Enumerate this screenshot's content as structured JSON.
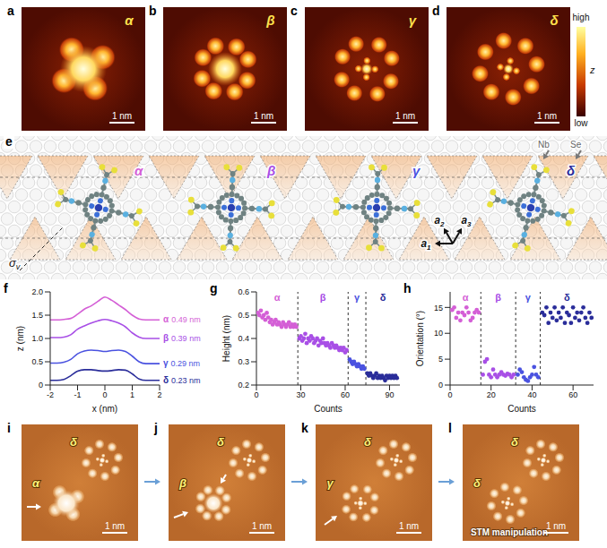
{
  "stm_images": [
    {
      "letter": "a",
      "state": "α",
      "scale_bar": "1 nm"
    },
    {
      "letter": "b",
      "state": "β",
      "scale_bar": "1 nm"
    },
    {
      "letter": "c",
      "state": "γ",
      "scale_bar": "1 nm"
    },
    {
      "letter": "d",
      "state": "δ",
      "scale_bar": "1 nm"
    }
  ],
  "colorbar": {
    "title": "z",
    "top": "high",
    "bottom": "low"
  },
  "schematic": {
    "letter": "e",
    "molecules": [
      "α",
      "β",
      "γ",
      "δ"
    ],
    "atoms": [
      "Nb",
      "Se"
    ],
    "mirror": {
      "base": "σ",
      "sub": "v"
    },
    "vectors": [
      {
        "base": "a",
        "sub": "1"
      },
      {
        "base": "a",
        "sub": "2"
      },
      {
        "base": "a",
        "sub": "3"
      }
    ]
  },
  "chart_data": [
    {
      "letter": "f",
      "type": "line",
      "xlabel": "x (nm)",
      "ylabel": "z (nm)",
      "xlim": [
        -2,
        2
      ],
      "xticks": [
        -2,
        -1,
        0,
        1,
        2
      ],
      "ylim": [
        0,
        2
      ],
      "yticks": [
        0,
        0.5,
        {
          "value": 1,
          "label": "1.0"
        },
        1.5,
        {
          "value": 2,
          "label": "2.0"
        }
      ],
      "x": [
        -2,
        -1.75,
        -1.5,
        -1.25,
        -1,
        -0.75,
        -0.5,
        -0.25,
        0,
        0.25,
        0.5,
        0.75,
        1,
        1.25,
        1.5,
        1.75,
        2
      ],
      "series": [
        {
          "name": "α",
          "color": "#d45fd6",
          "annotation": "0.49 nm",
          "values": [
            1.4,
            1.4,
            1.41,
            1.43,
            1.52,
            1.63,
            1.7,
            1.8,
            1.89,
            1.82,
            1.72,
            1.62,
            1.5,
            1.42,
            1.4,
            1.4,
            1.4
          ]
        },
        {
          "name": "β",
          "color": "#a84fe6",
          "annotation": "0.39 nm",
          "values": [
            1.02,
            1.02,
            1.03,
            1.08,
            1.2,
            1.27,
            1.33,
            1.38,
            1.41,
            1.38,
            1.33,
            1.25,
            1.12,
            1.03,
            1.0,
            1.0,
            1.0
          ]
        },
        {
          "name": "γ",
          "color": "#4a52e0",
          "annotation": "0.29 nm",
          "values": [
            0.47,
            0.47,
            0.49,
            0.55,
            0.67,
            0.73,
            0.75,
            0.74,
            0.72,
            0.74,
            0.75,
            0.72,
            0.62,
            0.5,
            0.46,
            0.46,
            0.46
          ]
        },
        {
          "name": "δ",
          "color": "#2a2d9a",
          "annotation": "0.23 nm",
          "values": [
            0.1,
            0.1,
            0.12,
            0.2,
            0.3,
            0.33,
            0.33,
            0.31,
            0.3,
            0.31,
            0.33,
            0.32,
            0.24,
            0.13,
            0.1,
            0.1,
            0.1
          ]
        }
      ]
    },
    {
      "letter": "g",
      "type": "scatter",
      "xlabel": "Counts",
      "ylabel": "Height (nm)",
      "xlim": [
        0,
        97
      ],
      "xticks": [
        0,
        30,
        60,
        90
      ],
      "ylim": [
        0.2,
        0.6
      ],
      "yticks": [
        0.2,
        0.3,
        0.4,
        0.5,
        0.6
      ],
      "boundaries": [
        28,
        62,
        74
      ],
      "series": [
        {
          "name": "α",
          "color": "#d45fd6",
          "x": [
            1,
            2,
            3,
            4,
            5,
            6,
            7,
            8,
            9,
            10,
            11,
            12,
            13,
            14,
            15,
            16,
            17,
            18,
            19,
            20,
            21,
            22,
            23,
            24,
            25,
            26,
            27
          ],
          "values": [
            0.51,
            0.5,
            0.52,
            0.49,
            0.5,
            0.48,
            0.51,
            0.49,
            0.47,
            0.48,
            0.46,
            0.47,
            0.48,
            0.46,
            0.47,
            0.46,
            0.45,
            0.47,
            0.46,
            0.45,
            0.46,
            0.47,
            0.45,
            0.46,
            0.45,
            0.46,
            0.45
          ]
        },
        {
          "name": "β",
          "color": "#a84fe6",
          "x": [
            29,
            30,
            31,
            32,
            33,
            34,
            35,
            36,
            37,
            38,
            39,
            40,
            41,
            42,
            43,
            44,
            45,
            46,
            47,
            48,
            49,
            50,
            51,
            52,
            53,
            54,
            55,
            56,
            57,
            58,
            59,
            60,
            61
          ],
          "values": [
            0.4,
            0.41,
            0.39,
            0.4,
            0.42,
            0.38,
            0.4,
            0.39,
            0.41,
            0.4,
            0.38,
            0.39,
            0.4,
            0.37,
            0.39,
            0.38,
            0.4,
            0.38,
            0.37,
            0.38,
            0.37,
            0.36,
            0.38,
            0.37,
            0.36,
            0.37,
            0.36,
            0.35,
            0.36,
            0.35,
            0.36,
            0.34,
            0.35
          ]
        },
        {
          "name": "γ",
          "color": "#4a52e0",
          "x": [
            63,
            64,
            65,
            66,
            67,
            68,
            69,
            70,
            71,
            72,
            73
          ],
          "values": [
            0.31,
            0.3,
            0.29,
            0.3,
            0.29,
            0.28,
            0.29,
            0.28,
            0.27,
            0.28,
            0.27
          ]
        },
        {
          "name": "δ",
          "color": "#2a2d9a",
          "x": [
            75,
            76,
            77,
            78,
            79,
            80,
            81,
            82,
            83,
            84,
            85,
            86,
            87,
            88,
            89,
            90,
            91,
            92,
            93,
            94,
            95
          ],
          "values": [
            0.25,
            0.24,
            0.25,
            0.24,
            0.23,
            0.24,
            0.25,
            0.23,
            0.24,
            0.23,
            0.24,
            0.23,
            0.22,
            0.24,
            0.23,
            0.24,
            0.23,
            0.24,
            0.23,
            0.24,
            0.23
          ]
        }
      ]
    },
    {
      "letter": "h",
      "type": "scatter",
      "xlabel": "Counts",
      "ylabel": "Orientation (°)",
      "xlim": [
        0,
        70
      ],
      "xticks": [
        0,
        20,
        40,
        60
      ],
      "ylim": [
        0,
        18
      ],
      "yticks": [
        0,
        5,
        10,
        15
      ],
      "boundaries": [
        15,
        32,
        44
      ],
      "series": [
        {
          "name": "α",
          "color": "#d45fd6",
          "x": [
            1,
            2,
            3,
            4,
            5,
            6,
            7,
            8,
            9,
            10,
            11,
            12,
            13,
            14
          ],
          "values": [
            14.5,
            15,
            13,
            14,
            12.5,
            14,
            13.5,
            15,
            14,
            12.5,
            13,
            14,
            14.5,
            14
          ]
        },
        {
          "name": "β",
          "color": "#a84fe6",
          "x": [
            16,
            17,
            18,
            19,
            20,
            21,
            22,
            23,
            24,
            25,
            26,
            27,
            28,
            29,
            30,
            31
          ],
          "values": [
            2,
            4.5,
            5,
            2,
            1.5,
            3,
            2,
            1.5,
            2,
            2.5,
            2,
            1.8,
            2.2,
            2,
            1.5,
            2
          ]
        },
        {
          "name": "γ",
          "color": "#4a52e0",
          "x": [
            33,
            34,
            35,
            36,
            37,
            38,
            39,
            40,
            41,
            42,
            43
          ],
          "values": [
            2,
            3,
            2.5,
            1.5,
            1,
            0.8,
            1.5,
            2,
            3.5,
            2,
            1.5
          ]
        },
        {
          "name": "δ",
          "color": "#2a2d9a",
          "x": [
            45,
            46,
            47,
            48,
            49,
            50,
            51,
            52,
            53,
            54,
            55,
            56,
            57,
            58,
            59,
            60,
            61,
            62,
            63,
            64,
            65,
            66,
            67,
            68,
            69
          ],
          "values": [
            14,
            13.5,
            15,
            12,
            14,
            13,
            15,
            12.5,
            14,
            13,
            15,
            12,
            14,
            13.5,
            12,
            15,
            13,
            14,
            12.5,
            14,
            15,
            13,
            12,
            14,
            13
          ]
        }
      ]
    }
  ],
  "manipulation": {
    "frames": [
      {
        "letter": "i",
        "labels": [
          "δ",
          "α"
        ],
        "scale_bar": "1 nm"
      },
      {
        "letter": "j",
        "labels": [
          "δ",
          "β"
        ],
        "scale_bar": "1 nm"
      },
      {
        "letter": "k",
        "labels": [
          "δ",
          "γ"
        ],
        "scale_bar": "1 nm"
      },
      {
        "letter": "l",
        "labels": [
          "δ",
          "δ"
        ],
        "scale_bar": "1 nm",
        "caption": "STM manipulation"
      }
    ]
  }
}
